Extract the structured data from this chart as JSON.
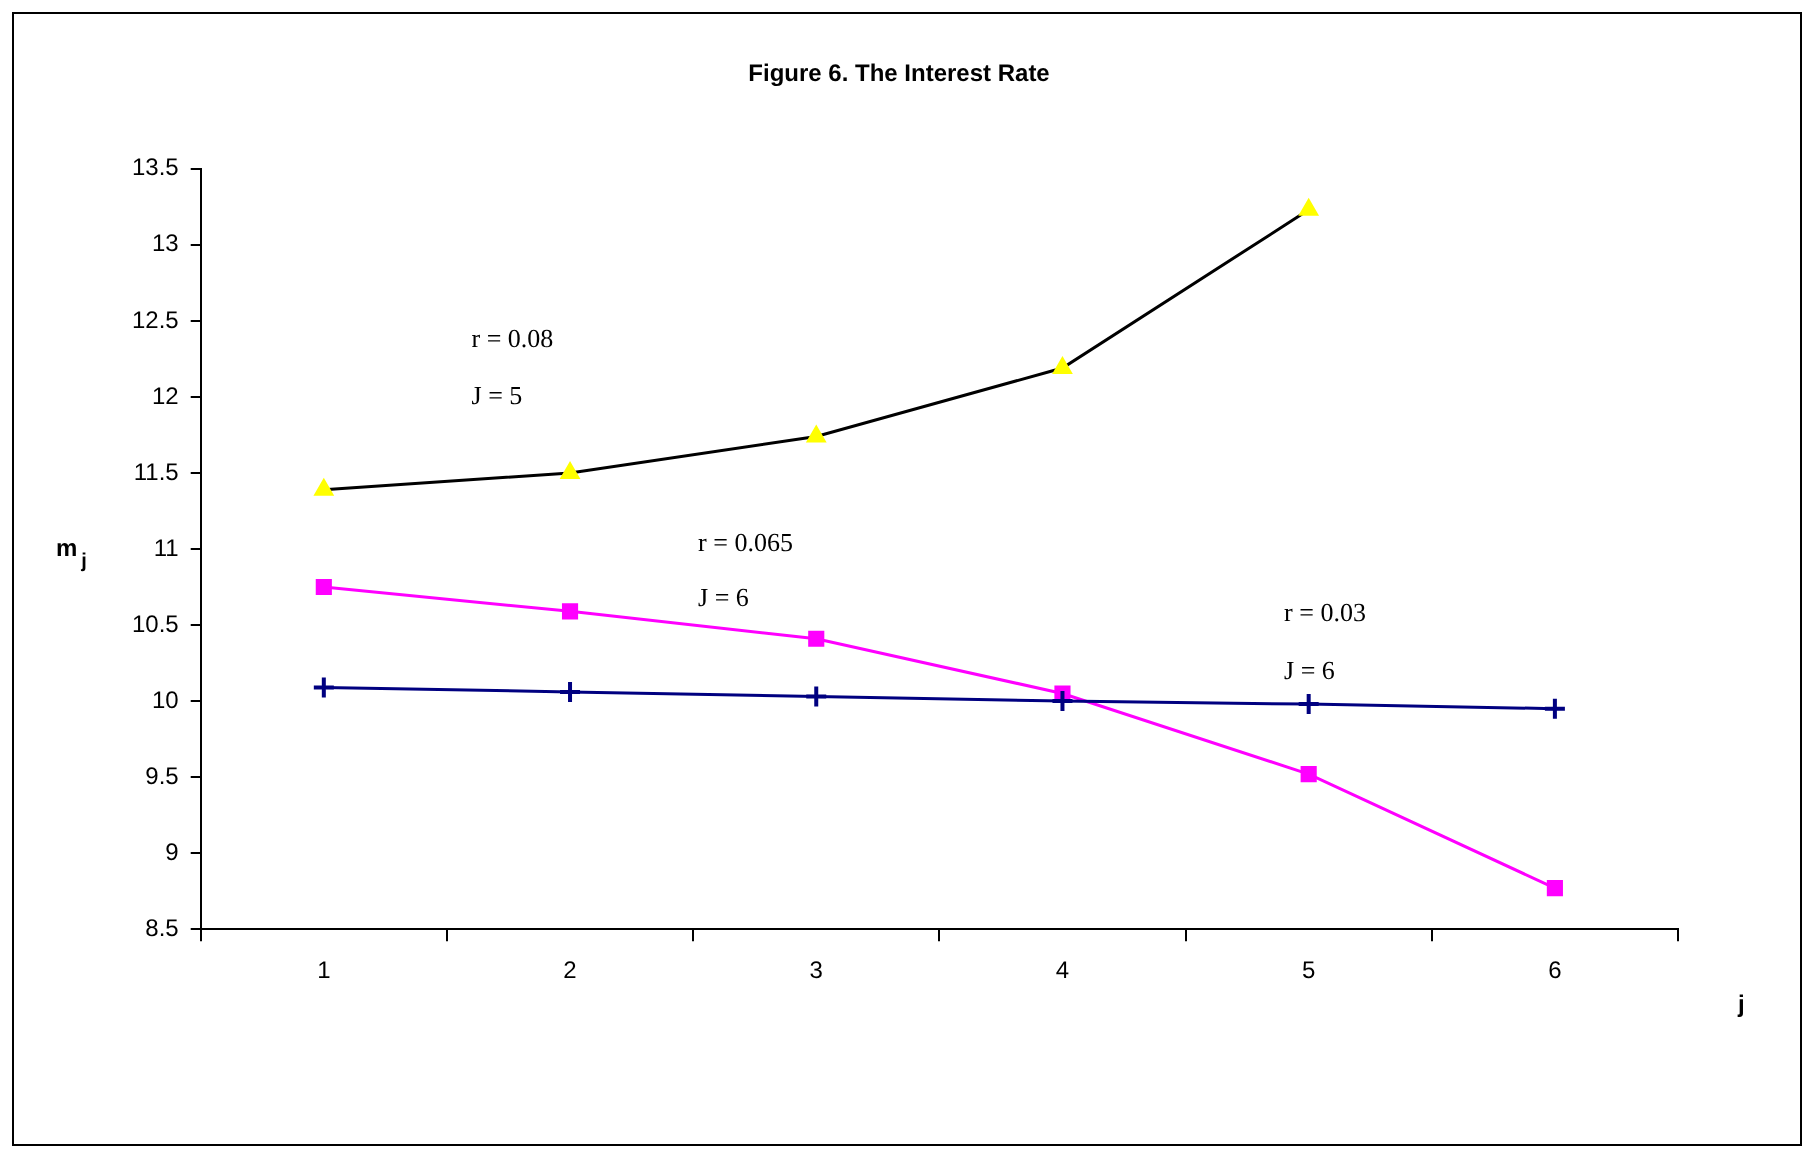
{
  "chart_data": {
    "type": "line",
    "title": "Figure 6. The Interest Rate",
    "xlabel": "j",
    "ylabel": "m$_{j}$",
    "categories": [
      "1",
      "2",
      "3",
      "4",
      "5",
      "6"
    ],
    "series": [
      {
        "color": "#000000",
        "colors": [
          "#ffff00",
          "#ffff00",
          "#ffff00",
          "#ffff00",
          "#ffff00",
          "#ffff00"
        ],
        "marker": "triangle",
        "values": [
          11.39,
          11.5,
          11.74,
          12.19,
          13.23,
          null
        ]
      },
      {
        "color": "#ff00ff",
        "marker": "square",
        "values": [
          10.75,
          10.59,
          10.41,
          10.05,
          9.52,
          8.77
        ]
      },
      {
        "color": "#000080",
        "marker": "cross",
        "values": [
          10.09,
          10.06,
          10.03,
          10.0,
          9.98,
          9.95
        ]
      }
    ],
    "annotations": [
      "r = 0.08",
      "J = 5",
      "r = 0.065",
      "J = 6",
      "r = 0.03",
      "J = 6"
    ],
    "ylim": [
      8.5,
      13.5
    ],
    "yticks": [
      8.5,
      9,
      9.5,
      10,
      10.5,
      11,
      11.5,
      12,
      12.5,
      13,
      13.5
    ],
    "grid": false,
    "legend": false
  }
}
